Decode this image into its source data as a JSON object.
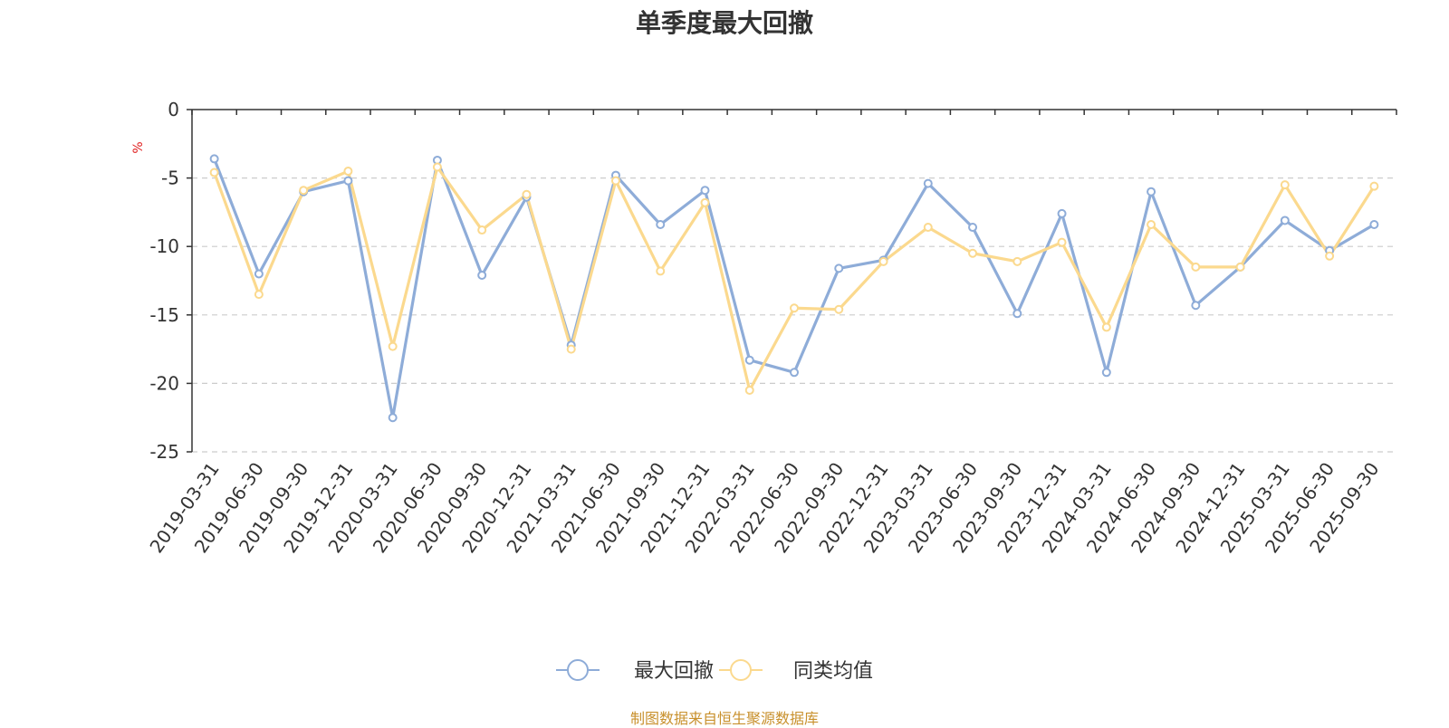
{
  "chart_data": {
    "type": "line",
    "title": "单季度最大回撤",
    "ylabel": "%",
    "ylim": [
      -25,
      0
    ],
    "yticks": [
      0,
      -5,
      -10,
      -15,
      -20,
      -25
    ],
    "grid": true,
    "legend_position": "bottom-center",
    "categories": [
      "2019-03-31",
      "2019-06-30",
      "2019-09-30",
      "2019-12-31",
      "2020-03-31",
      "2020-06-30",
      "2020-09-30",
      "2020-12-31",
      "2021-03-31",
      "2021-06-30",
      "2021-09-30",
      "2021-12-31",
      "2022-03-31",
      "2022-06-30",
      "2022-09-30",
      "2022-12-31",
      "2023-03-31",
      "2023-06-30",
      "2023-09-30",
      "2023-12-31",
      "2024-03-31",
      "2024-06-30",
      "2024-09-30",
      "2024-12-31",
      "2025-03-31",
      "2025-06-30",
      "2025-09-30"
    ],
    "series": [
      {
        "name": "最大回撤",
        "color": "#8eacd8",
        "values": [
          -3.6,
          -12.0,
          -6.0,
          -5.2,
          -22.5,
          -3.7,
          -12.1,
          -6.4,
          -17.2,
          -4.8,
          -8.4,
          -5.9,
          -18.3,
          -19.2,
          -11.6,
          -11.0,
          -5.4,
          -8.6,
          -14.9,
          -7.6,
          -19.2,
          -6.0,
          -14.3,
          -11.5,
          -8.1,
          -10.3,
          -8.4
        ]
      },
      {
        "name": "同类均值",
        "color": "#fbd98e",
        "values": [
          -4.6,
          -13.5,
          -5.9,
          -4.5,
          -17.3,
          -4.2,
          -8.8,
          -6.2,
          -17.5,
          -5.2,
          -11.8,
          -6.8,
          -20.5,
          -14.5,
          -14.6,
          -11.1,
          -8.6,
          -10.5,
          -11.1,
          -9.7,
          -15.9,
          -8.4,
          -11.5,
          -11.5,
          -5.5,
          -10.7,
          -5.6
        ]
      }
    ]
  },
  "footer": {
    "source": "制图数据来自恒生聚源数据库"
  },
  "colors": {
    "axis": "#333333",
    "grid": "#cccccc",
    "unit": "#e02020"
  }
}
